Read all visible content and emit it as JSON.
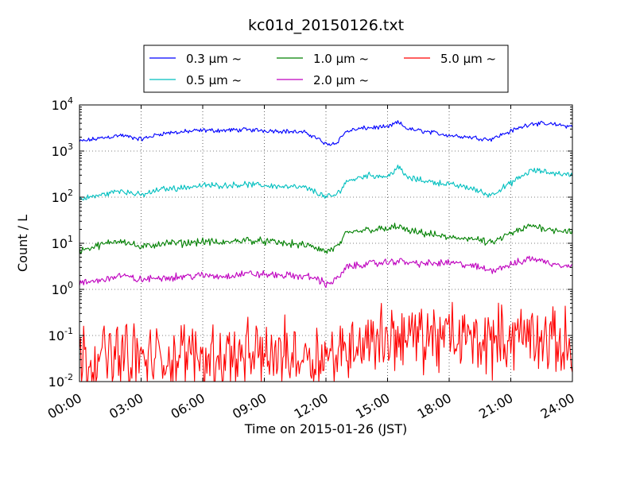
{
  "chart_data": {
    "type": "line",
    "title": "kc01d_20150126.txt",
    "xlabel": "Time on 2015-01-26 (JST)",
    "ylabel": "Count / L",
    "yscale": "log",
    "ylim": [
      0.01,
      10000
    ],
    "xlim": [
      "00:00",
      "24:00"
    ],
    "grid": true,
    "legend_position": "top-center",
    "x_ticks": [
      "00:00",
      "03:00",
      "06:00",
      "09:00",
      "12:00",
      "15:00",
      "18:00",
      "21:00",
      "24:00"
    ],
    "y_ticks": [
      {
        "base": "10",
        "exp": "-2"
      },
      {
        "base": "10",
        "exp": "-1"
      },
      {
        "base": "10",
        "exp": "0"
      },
      {
        "base": "10",
        "exp": "1"
      },
      {
        "base": "10",
        "exp": "2"
      },
      {
        "base": "10",
        "exp": "3"
      },
      {
        "base": "10",
        "exp": "4"
      }
    ],
    "x_hours": [
      0,
      1,
      2,
      3,
      4,
      5,
      6,
      7,
      8,
      9,
      10,
      11,
      11.5,
      12,
      12.5,
      13,
      14,
      15,
      15.5,
      16,
      17,
      18,
      19,
      20,
      21,
      22,
      23,
      24
    ],
    "series": [
      {
        "name": "0.3 μm ~",
        "color": "#0000ff",
        "noise": 0.03,
        "values": [
          1600,
          1900,
          2200,
          1800,
          2400,
          2600,
          2800,
          2800,
          2900,
          2800,
          2700,
          2500,
          2000,
          1400,
          1500,
          2700,
          3200,
          3300,
          4200,
          3000,
          2600,
          2200,
          2000,
          1800,
          2700,
          4000,
          3800,
          3400
        ]
      },
      {
        "name": "0.5 μm ~",
        "color": "#00bfbf",
        "noise": 0.04,
        "values": [
          90,
          110,
          140,
          110,
          150,
          160,
          180,
          180,
          190,
          180,
          170,
          160,
          130,
          100,
          110,
          220,
          300,
          280,
          450,
          260,
          220,
          190,
          160,
          110,
          200,
          380,
          340,
          300
        ]
      },
      {
        "name": "1.0 μm ~",
        "color": "#008000",
        "noise": 0.05,
        "values": [
          7,
          9,
          12,
          8,
          10,
          10,
          11,
          10,
          12,
          11,
          10,
          9,
          8,
          6.5,
          8,
          16,
          20,
          20,
          24,
          18,
          16,
          13,
          13,
          10,
          16,
          24,
          20,
          18
        ]
      },
      {
        "name": "2.0 μm ~",
        "color": "#bf00bf",
        "noise": 0.05,
        "values": [
          1.3,
          1.6,
          2.0,
          1.6,
          1.8,
          1.9,
          2.0,
          1.9,
          2.2,
          2.1,
          2.0,
          1.9,
          1.8,
          1.3,
          1.6,
          3.0,
          3.6,
          3.8,
          4.2,
          3.8,
          3.6,
          3.8,
          3.3,
          2.6,
          3.4,
          4.8,
          3.6,
          3.3
        ]
      },
      {
        "name": "5.0 μm ~",
        "color": "#ff0000",
        "noise": 0.45,
        "values": [
          0.03,
          0.035,
          0.04,
          0.03,
          0.03,
          0.035,
          0.04,
          0.035,
          0.035,
          0.04,
          0.04,
          0.04,
          0.04,
          0.035,
          0.035,
          0.06,
          0.08,
          0.09,
          0.1,
          0.09,
          0.09,
          0.09,
          0.085,
          0.08,
          0.09,
          0.1,
          0.07,
          0.06
        ]
      }
    ]
  }
}
